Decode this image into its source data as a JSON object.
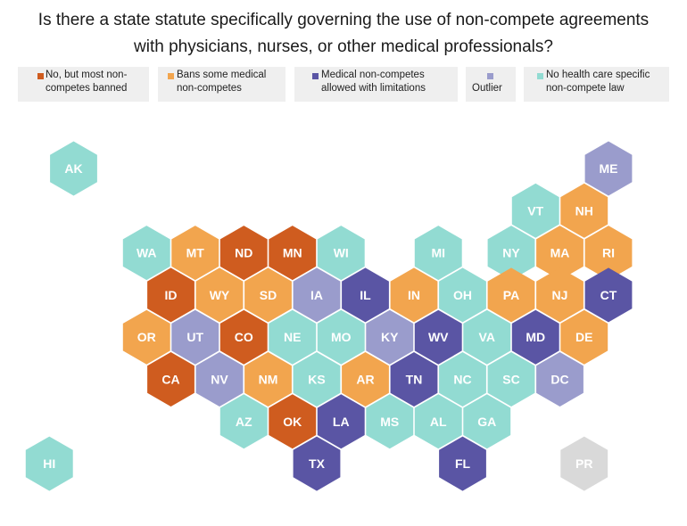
{
  "title": {
    "line1": "Is there a state statute specifically governing the use of non-compete agreements",
    "line2": "with physicians, nurses, or other medical professionals?"
  },
  "legend": [
    {
      "key": "banned",
      "label": "No, but most non-\ncompetes banned",
      "color": "#cf5c1f"
    },
    {
      "key": "some",
      "label": "Bans some medical\nnon-competes",
      "color": "#f2a54e"
    },
    {
      "key": "limited",
      "label": "Medical non-competes\nallowed with limitations",
      "color": "#5a55a4"
    },
    {
      "key": "outlier",
      "label": "Outlier",
      "color": "#9a9ccc"
    },
    {
      "key": "none",
      "label": "No health care specific\nnon-compete law",
      "color": "#92dbd2"
    }
  ],
  "colors": {
    "banned": "#cf5c1f",
    "some": "#f2a54e",
    "limited": "#5a55a4",
    "outlier": "#9a9ccc",
    "none": "#92dbd2",
    "na": "#d9d9d9"
  },
  "states": [
    {
      "code": "AK",
      "category": "none",
      "col": 1,
      "row": 0
    },
    {
      "code": "ME",
      "category": "outlier",
      "col": 12,
      "row": 0
    },
    {
      "code": "VT",
      "category": "none",
      "col": 10.5,
      "row": 1
    },
    {
      "code": "NH",
      "category": "some",
      "col": 11.5,
      "row": 1
    },
    {
      "code": "WA",
      "category": "none",
      "col": 2.5,
      "row": 2
    },
    {
      "code": "MT",
      "category": "some",
      "col": 3.5,
      "row": 2
    },
    {
      "code": "ND",
      "category": "banned",
      "col": 4.5,
      "row": 2
    },
    {
      "code": "MN",
      "category": "banned",
      "col": 5.5,
      "row": 2
    },
    {
      "code": "WI",
      "category": "none",
      "col": 6.5,
      "row": 2
    },
    {
      "code": "MI",
      "category": "none",
      "col": 8.5,
      "row": 2
    },
    {
      "code": "NY",
      "category": "none",
      "col": 10,
      "row": 2
    },
    {
      "code": "MA",
      "category": "some",
      "col": 11,
      "row": 2
    },
    {
      "code": "RI",
      "category": "some",
      "col": 12,
      "row": 2
    },
    {
      "code": "ID",
      "category": "banned",
      "col": 3,
      "row": 3
    },
    {
      "code": "WY",
      "category": "some",
      "col": 4,
      "row": 3
    },
    {
      "code": "SD",
      "category": "some",
      "col": 5,
      "row": 3
    },
    {
      "code": "IA",
      "category": "outlier",
      "col": 6,
      "row": 3
    },
    {
      "code": "IL",
      "category": "limited",
      "col": 7,
      "row": 3
    },
    {
      "code": "IN",
      "category": "some",
      "col": 8,
      "row": 3
    },
    {
      "code": "OH",
      "category": "none",
      "col": 9,
      "row": 3
    },
    {
      "code": "PA",
      "category": "some",
      "col": 10,
      "row": 3
    },
    {
      "code": "NJ",
      "category": "some",
      "col": 11,
      "row": 3
    },
    {
      "code": "CT",
      "category": "limited",
      "col": 12,
      "row": 3
    },
    {
      "code": "OR",
      "category": "some",
      "col": 2.5,
      "row": 4
    },
    {
      "code": "UT",
      "category": "outlier",
      "col": 3.5,
      "row": 4
    },
    {
      "code": "CO",
      "category": "banned",
      "col": 4.5,
      "row": 4
    },
    {
      "code": "NE",
      "category": "none",
      "col": 5.5,
      "row": 4
    },
    {
      "code": "MO",
      "category": "none",
      "col": 6.5,
      "row": 4
    },
    {
      "code": "KY",
      "category": "outlier",
      "col": 7.5,
      "row": 4
    },
    {
      "code": "WV",
      "category": "limited",
      "col": 8.5,
      "row": 4
    },
    {
      "code": "VA",
      "category": "none",
      "col": 9.5,
      "row": 4
    },
    {
      "code": "MD",
      "category": "limited",
      "col": 10.5,
      "row": 4
    },
    {
      "code": "DE",
      "category": "some",
      "col": 11.5,
      "row": 4
    },
    {
      "code": "CA",
      "category": "banned",
      "col": 3,
      "row": 5
    },
    {
      "code": "NV",
      "category": "outlier",
      "col": 4,
      "row": 5
    },
    {
      "code": "NM",
      "category": "some",
      "col": 5,
      "row": 5
    },
    {
      "code": "KS",
      "category": "none",
      "col": 6,
      "row": 5
    },
    {
      "code": "AR",
      "category": "some",
      "col": 7,
      "row": 5
    },
    {
      "code": "TN",
      "category": "limited",
      "col": 8,
      "row": 5
    },
    {
      "code": "NC",
      "category": "none",
      "col": 9,
      "row": 5
    },
    {
      "code": "SC",
      "category": "none",
      "col": 10,
      "row": 5
    },
    {
      "code": "DC",
      "category": "outlier",
      "col": 11,
      "row": 5
    },
    {
      "code": "AZ",
      "category": "none",
      "col": 4.5,
      "row": 6
    },
    {
      "code": "OK",
      "category": "banned",
      "col": 5.5,
      "row": 6
    },
    {
      "code": "LA",
      "category": "limited",
      "col": 6.5,
      "row": 6
    },
    {
      "code": "MS",
      "category": "none",
      "col": 7.5,
      "row": 6
    },
    {
      "code": "AL",
      "category": "none",
      "col": 8.5,
      "row": 6
    },
    {
      "code": "GA",
      "category": "none",
      "col": 9.5,
      "row": 6
    },
    {
      "code": "HI",
      "category": "none",
      "col": 0.5,
      "row": 7
    },
    {
      "code": "TX",
      "category": "limited",
      "col": 6,
      "row": 7
    },
    {
      "code": "FL",
      "category": "limited",
      "col": 9,
      "row": 7
    },
    {
      "code": "PR",
      "category": "na",
      "col": 11.5,
      "row": 7
    }
  ]
}
